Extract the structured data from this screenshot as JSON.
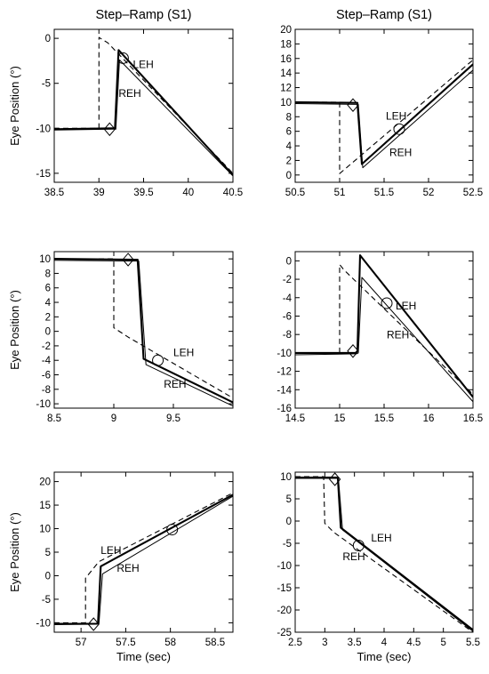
{
  "chart_data": [
    {
      "type": "line",
      "title": "Step–Ramp (S1)",
      "xlabel": "",
      "ylabel": "Eye Position (°)",
      "xlim": [
        38.5,
        40.5
      ],
      "ylim": [
        -16,
        1
      ],
      "xticks": [
        38.5,
        39,
        39.5,
        40,
        40.5
      ],
      "xtick_labels": [
        "38.5",
        "39",
        "39.5",
        "40",
        "40.5"
      ],
      "yticks": [
        0,
        -5,
        -10,
        -15
      ],
      "ytick_labels": [
        "0",
        "-5",
        "-10",
        "-15"
      ],
      "annotations": [
        {
          "text": "LEH",
          "x": 39.38,
          "y": -3.3
        },
        {
          "text": "REH",
          "x": 39.22,
          "y": -6.5
        }
      ],
      "markers": [
        {
          "shape": "diamond",
          "x": 39.12,
          "y": -10.1
        },
        {
          "shape": "circle",
          "x": 39.27,
          "y": -2.2
        }
      ],
      "series": [
        {
          "style": "dashed",
          "x": [
            38.5,
            39.0,
            39.0,
            39.1,
            40.5
          ],
          "y": [
            -10.0,
            -10.0,
            0.1,
            -0.5,
            -15.0
          ]
        },
        {
          "style": "thick",
          "x": [
            38.5,
            39.15,
            39.18,
            39.22,
            40.5
          ],
          "y": [
            -10.1,
            -10.0,
            -10.0,
            -1.3,
            -15.2
          ]
        },
        {
          "style": "thin",
          "x": [
            38.5,
            39.15,
            39.19,
            39.23,
            40.5
          ],
          "y": [
            -10.2,
            -10.1,
            -10.1,
            -2.4,
            -15.3
          ]
        }
      ]
    },
    {
      "type": "line",
      "title": "Step–Ramp (S1)",
      "xlabel": "",
      "ylabel": "",
      "xlim": [
        50.5,
        52.5
      ],
      "ylim": [
        -1,
        20
      ],
      "xticks": [
        50.5,
        51,
        51.5,
        52,
        52.5
      ],
      "xtick_labels": [
        "50.5",
        "51",
        "51.5",
        "52",
        "52.5"
      ],
      "yticks": [
        0,
        2,
        4,
        6,
        8,
        10,
        12,
        14,
        16,
        18,
        20
      ],
      "ytick_labels": [
        "0",
        "2",
        "4",
        "6",
        "8",
        "10",
        "12",
        "14",
        "16",
        "18",
        "20"
      ],
      "annotations": [
        {
          "text": "LEH",
          "x": 51.52,
          "y": 7.6
        },
        {
          "text": "REH",
          "x": 51.56,
          "y": 2.6
        }
      ],
      "markers": [
        {
          "shape": "diamond",
          "x": 51.15,
          "y": 9.6
        },
        {
          "shape": "circle",
          "x": 51.67,
          "y": 6.3
        }
      ],
      "series": [
        {
          "style": "dashed",
          "x": [
            50.5,
            51.0,
            51.0,
            52.5
          ],
          "y": [
            10.0,
            10.0,
            0.2,
            15.8
          ]
        },
        {
          "style": "thick",
          "x": [
            50.5,
            51.18,
            51.2,
            51.25,
            52.5
          ],
          "y": [
            10.0,
            9.9,
            9.9,
            1.5,
            15.2
          ]
        },
        {
          "style": "thin",
          "x": [
            50.5,
            51.19,
            51.21,
            51.26,
            52.5
          ],
          "y": [
            9.8,
            9.7,
            9.7,
            1.0,
            14.4
          ]
        }
      ]
    },
    {
      "type": "line",
      "title": "",
      "xlabel": "",
      "ylabel": "Eye Position (°)",
      "xlim": [
        8.5,
        10.0
      ],
      "ylim": [
        -10.6,
        11
      ],
      "xticks": [
        8.5,
        9,
        9.5
      ],
      "xtick_labels": [
        "8.5",
        "9",
        "9.5"
      ],
      "yticks": [
        10,
        8,
        6,
        4,
        2,
        0,
        -2,
        -4,
        -6,
        -8,
        -10
      ],
      "ytick_labels": [
        "10",
        "8",
        "6",
        "4",
        "2",
        "0",
        "-2",
        "-4",
        "-6",
        "-8",
        "-10"
      ],
      "annotations": [
        {
          "text": "LEH",
          "x": 9.5,
          "y": -3.4
        },
        {
          "text": "REH",
          "x": 9.42,
          "y": -7.8
        }
      ],
      "markers": [
        {
          "shape": "diamond",
          "x": 9.12,
          "y": 9.9
        },
        {
          "shape": "circle",
          "x": 9.37,
          "y": -4.0
        }
      ],
      "series": [
        {
          "style": "dashed",
          "x": [
            8.5,
            9.0,
            9.0,
            9.12,
            10.0
          ],
          "y": [
            10.0,
            10.0,
            0.5,
            -0.8,
            -9.2
          ]
        },
        {
          "style": "thick",
          "x": [
            8.5,
            9.18,
            9.2,
            9.25,
            10.0
          ],
          "y": [
            10.0,
            9.9,
            9.9,
            -3.8,
            -9.8
          ]
        },
        {
          "style": "thin",
          "x": [
            8.5,
            9.18,
            9.21,
            9.27,
            10.0
          ],
          "y": [
            9.8,
            9.7,
            9.7,
            -4.6,
            -10.3
          ]
        }
      ]
    },
    {
      "type": "line",
      "title": "",
      "xlabel": "",
      "ylabel": "",
      "xlim": [
        14.5,
        16.5
      ],
      "ylim": [
        -16,
        1
      ],
      "xticks": [
        14.5,
        15,
        15.5,
        16,
        16.5
      ],
      "xtick_labels": [
        "14.5",
        "15",
        "15.5",
        "16",
        "16.5"
      ],
      "yticks": [
        0,
        -2,
        -4,
        -6,
        -8,
        -10,
        -12,
        -14,
        -16
      ],
      "ytick_labels": [
        "0",
        "-2",
        "-4",
        "-6",
        "-8",
        "-10",
        "-12",
        "-14",
        "-16"
      ],
      "annotations": [
        {
          "text": "LEH",
          "x": 15.63,
          "y": -5.3
        },
        {
          "text": "REH",
          "x": 15.53,
          "y": -8.4
        }
      ],
      "markers": [
        {
          "shape": "diamond",
          "x": 15.15,
          "y": -9.8
        },
        {
          "shape": "circle",
          "x": 15.53,
          "y": -4.6
        }
      ],
      "series": [
        {
          "style": "dashed",
          "x": [
            14.5,
            15.0,
            15.0,
            15.05,
            16.5
          ],
          "y": [
            -10.0,
            -10.0,
            -0.4,
            -1.0,
            -14.5
          ]
        },
        {
          "style": "thick",
          "x": [
            14.5,
            15.18,
            15.2,
            15.23,
            16.5
          ],
          "y": [
            -10.0,
            -10.0,
            -9.8,
            0.6,
            -14.8
          ]
        },
        {
          "style": "thin",
          "x": [
            14.5,
            15.19,
            15.21,
            15.25,
            16.5
          ],
          "y": [
            -10.2,
            -10.1,
            -10.0,
            -1.8,
            -15.3
          ]
        }
      ]
    },
    {
      "type": "line",
      "title": "",
      "xlabel": "Time (sec)",
      "ylabel": "Eye Position (°)",
      "xlim": [
        56.7,
        58.7
      ],
      "ylim": [
        -12,
        22
      ],
      "xticks": [
        57,
        57.5,
        58,
        58.5
      ],
      "xtick_labels": [
        "57",
        "57.5",
        "58",
        "58.5"
      ],
      "yticks": [
        20,
        15,
        10,
        5,
        0,
        -5,
        -10
      ],
      "ytick_labels": [
        "20",
        "15",
        "10",
        "5",
        "0",
        "-5",
        "-10"
      ],
      "annotations": [
        {
          "text": "LEH",
          "x": 57.22,
          "y": 4.6
        },
        {
          "text": "REH",
          "x": 57.4,
          "y": 0.8
        }
      ],
      "markers": [
        {
          "shape": "diamond",
          "x": 57.14,
          "y": -10.3
        },
        {
          "shape": "circle",
          "x": 58.02,
          "y": 9.8
        }
      ],
      "series": [
        {
          "style": "dashed",
          "x": [
            56.7,
            57.05,
            57.05,
            57.2,
            58.7
          ],
          "y": [
            -10.0,
            -10.0,
            -0.5,
            3.0,
            17.6
          ]
        },
        {
          "style": "thick",
          "x": [
            56.7,
            57.17,
            57.19,
            57.22,
            58.7
          ],
          "y": [
            -10.2,
            -10.2,
            -10.1,
            2.0,
            17.2
          ]
        },
        {
          "style": "thin",
          "x": [
            56.7,
            57.18,
            57.2,
            57.24,
            58.7
          ],
          "y": [
            -10.4,
            -10.3,
            -10.2,
            0.4,
            16.9
          ]
        }
      ]
    },
    {
      "type": "line",
      "title": "",
      "xlabel": "Time (sec)",
      "ylabel": "",
      "xlim": [
        2.5,
        5.5
      ],
      "ylim": [
        -25,
        11
      ],
      "xticks": [
        2.5,
        3,
        3.5,
        4,
        4.5,
        5,
        5.5
      ],
      "xtick_labels": [
        "2.5",
        "3",
        "3.5",
        "4",
        "4.5",
        "5",
        "5.5"
      ],
      "yticks": [
        10,
        5,
        0,
        -5,
        -10,
        -15,
        -20,
        -25
      ],
      "ytick_labels": [
        "10",
        "5",
        "0",
        "-5",
        "-10",
        "-15",
        "-20",
        "-25"
      ],
      "annotations": [
        {
          "text": "LEH",
          "x": 3.78,
          "y": -4.6
        },
        {
          "text": "REH",
          "x": 3.3,
          "y": -8.8
        }
      ],
      "markers": [
        {
          "shape": "diamond",
          "x": 3.17,
          "y": 9.4
        },
        {
          "shape": "circle",
          "x": 3.57,
          "y": -5.5
        }
      ],
      "series": [
        {
          "style": "dashed",
          "x": [
            2.5,
            2.98,
            3.0,
            3.15,
            5.5
          ],
          "y": [
            10.0,
            10.0,
            -0.5,
            -2.5,
            -25.0
          ]
        },
        {
          "style": "thick",
          "x": [
            2.5,
            3.2,
            3.22,
            3.27,
            5.5
          ],
          "y": [
            9.8,
            9.8,
            9.6,
            -1.5,
            -24.5
          ]
        },
        {
          "style": "thin",
          "x": [
            2.5,
            3.21,
            3.23,
            3.3,
            5.5
          ],
          "y": [
            9.6,
            9.6,
            9.4,
            -2.0,
            -24.8
          ]
        }
      ]
    }
  ]
}
